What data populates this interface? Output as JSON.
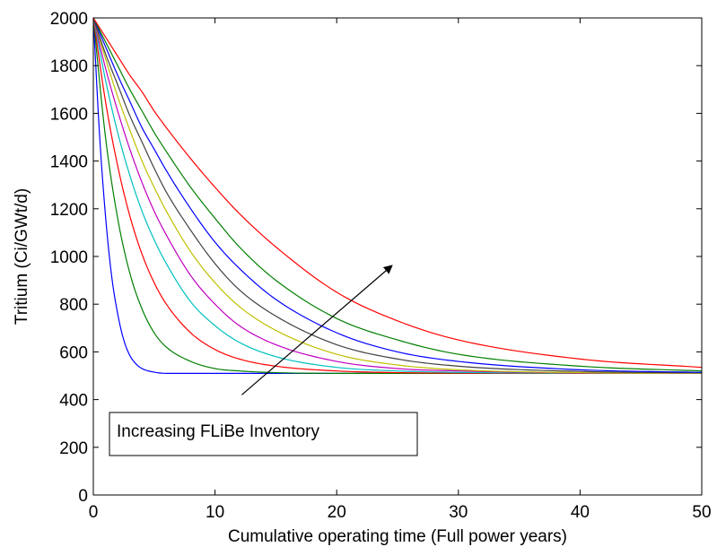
{
  "chart_data": {
    "type": "line",
    "xlabel": "Cumulative operating time (Full power years)",
    "ylabel": "Tritium (Ci/GWt/d)",
    "xlim": [
      0,
      50
    ],
    "ylim": [
      0,
      2000
    ],
    "xticks": [
      0,
      10,
      20,
      30,
      40,
      50
    ],
    "yticks": [
      0,
      200,
      400,
      600,
      800,
      1000,
      1200,
      1400,
      1600,
      1800,
      2000
    ],
    "grid": false,
    "legend": "none",
    "series": [
      {
        "color": "#0000ff",
        "x": [
          0,
          0.5,
          1,
          1.5,
          2,
          2.5,
          3,
          3.5,
          4,
          5,
          6,
          8,
          10,
          15,
          20,
          30,
          40,
          50
        ],
        "y": [
          2000,
          1520,
          1170,
          920,
          760,
          650,
          585,
          550,
          530,
          515,
          510,
          510,
          510,
          510,
          510,
          510,
          510,
          510
        ]
      },
      {
        "color": "#007f00",
        "x": [
          0,
          1,
          2,
          3,
          4,
          5,
          6,
          8,
          10,
          12,
          15,
          20,
          25,
          30,
          40,
          50
        ],
        "y": [
          2000,
          1500,
          1160,
          930,
          780,
          680,
          620,
          560,
          530,
          520,
          513,
          510,
          510,
          510,
          510,
          510
        ]
      },
      {
        "color": "#ff0000",
        "x": [
          0,
          1,
          2,
          3,
          4,
          5,
          6,
          8,
          10,
          12,
          15,
          20,
          25,
          30,
          40,
          50
        ],
        "y": [
          2000,
          1650,
          1380,
          1170,
          1010,
          890,
          800,
          680,
          610,
          570,
          540,
          520,
          513,
          511,
          510,
          510
        ]
      },
      {
        "color": "#00bfbf",
        "x": [
          0,
          1,
          2,
          3,
          4,
          5,
          6,
          8,
          10,
          12,
          15,
          20,
          25,
          30,
          40,
          50
        ],
        "y": [
          2000,
          1740,
          1520,
          1340,
          1190,
          1070,
          970,
          810,
          710,
          640,
          580,
          535,
          520,
          514,
          511,
          510
        ]
      },
      {
        "color": "#bf00bf",
        "x": [
          0,
          1,
          2,
          3,
          4,
          5,
          6,
          8,
          10,
          12,
          15,
          20,
          25,
          30,
          40,
          50
        ],
        "y": [
          2000,
          1790,
          1610,
          1450,
          1310,
          1190,
          1090,
          920,
          800,
          710,
          630,
          560,
          530,
          520,
          512,
          510
        ]
      },
      {
        "color": "#bfbf00",
        "x": [
          0,
          1,
          2,
          3,
          4,
          5,
          6,
          8,
          10,
          12,
          15,
          20,
          25,
          30,
          40,
          50
        ],
        "y": [
          2000,
          1830,
          1670,
          1530,
          1400,
          1290,
          1190,
          1020,
          890,
          790,
          690,
          590,
          545,
          525,
          513,
          510
        ]
      },
      {
        "color": "#404040",
        "x": [
          0,
          1,
          2,
          3,
          4,
          5,
          6,
          8,
          10,
          12,
          15,
          20,
          25,
          30,
          40,
          50
        ],
        "y": [
          2000,
          1850,
          1720,
          1590,
          1480,
          1370,
          1270,
          1110,
          970,
          860,
          750,
          630,
          570,
          540,
          518,
          512
        ]
      },
      {
        "color": "#0000ff",
        "x": [
          0,
          1,
          2,
          3,
          4,
          5,
          6,
          8,
          10,
          12,
          15,
          20,
          25,
          30,
          40,
          50
        ],
        "y": [
          2000,
          1880,
          1760,
          1650,
          1540,
          1450,
          1360,
          1200,
          1060,
          950,
          820,
          680,
          600,
          560,
          525,
          514
        ]
      },
      {
        "color": "#007f00",
        "x": [
          0,
          1,
          2,
          3,
          4,
          5,
          6,
          8,
          10,
          12,
          15,
          20,
          25,
          30,
          40,
          50
        ],
        "y": [
          2000,
          1900,
          1800,
          1700,
          1610,
          1520,
          1440,
          1290,
          1160,
          1040,
          900,
          740,
          650,
          590,
          540,
          520
        ]
      },
      {
        "color": "#ff0000",
        "x": [
          0,
          1,
          2,
          3,
          4,
          5,
          6,
          8,
          10,
          12,
          15,
          20,
          25,
          30,
          40,
          50
        ],
        "y": [
          2000,
          1920,
          1840,
          1760,
          1690,
          1610,
          1540,
          1410,
          1290,
          1180,
          1040,
          850,
          730,
          650,
          570,
          535
        ]
      }
    ],
    "annotation": {
      "text": "Increasing FLiBe Inventory",
      "arrow_from": [
        12.2,
        420
      ],
      "arrow_to": [
        24.5,
        960
      ]
    }
  }
}
